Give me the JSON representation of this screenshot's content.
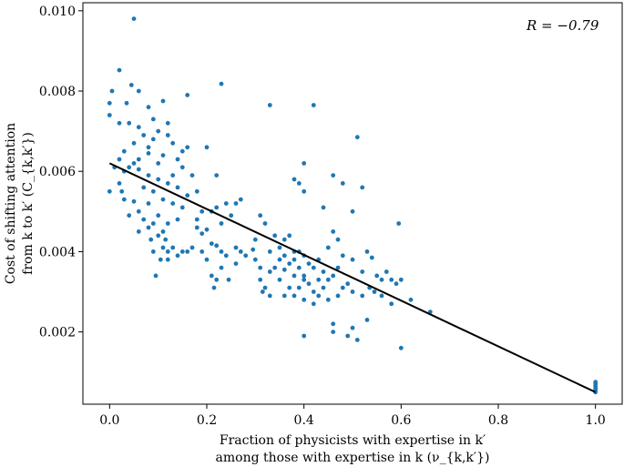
{
  "chart_data": {
    "type": "scatter",
    "xlabel_line1": "Fraction of physicists with expertise in k′",
    "xlabel_line2": "among those with expertise in k (ν_{k,k′})",
    "ylabel_line1": "Cost of shifting attention",
    "ylabel_line2": "from k to k′ (C_{k,k′})",
    "annotation": "R = −0.79",
    "xlim": [
      -0.055,
      1.055
    ],
    "ylim": [
      0.0002,
      0.0102
    ],
    "x_ticks": [
      0.0,
      0.2,
      0.4,
      0.6,
      0.8,
      1.0
    ],
    "x_tick_labels": [
      "0.0",
      "0.2",
      "0.4",
      "0.6",
      "0.8",
      "1.0"
    ],
    "y_ticks": [
      0.002,
      0.004,
      0.006,
      0.008,
      0.01
    ],
    "y_tick_labels": [
      "0.002",
      "0.004",
      "0.006",
      "0.008",
      "0.010"
    ],
    "grid": false,
    "colors": {
      "points": "#1f77b4",
      "fit_line": "#000000"
    },
    "fit_line": {
      "x": [
        0.0,
        1.0
      ],
      "y": [
        0.0062,
        0.0005
      ]
    },
    "points": [
      [
        0.05,
        0.0098
      ],
      [
        0.02,
        0.00852
      ],
      [
        0.045,
        0.00815
      ],
      [
        0.005,
        0.008
      ],
      [
        0.06,
        0.008
      ],
      [
        0.035,
        0.0077
      ],
      [
        0.0,
        0.0077
      ],
      [
        0.08,
        0.0076
      ],
      [
        0.11,
        0.00775
      ],
      [
        0.23,
        0.00818
      ],
      [
        0.16,
        0.0079
      ],
      [
        0.33,
        0.00765
      ],
      [
        0.42,
        0.00765
      ],
      [
        0.0,
        0.0074
      ],
      [
        0.02,
        0.0072
      ],
      [
        0.04,
        0.0072
      ],
      [
        0.06,
        0.0071
      ],
      [
        0.09,
        0.0073
      ],
      [
        0.12,
        0.0072
      ],
      [
        0.1,
        0.007
      ],
      [
        0.07,
        0.0069
      ],
      [
        0.05,
        0.0067
      ],
      [
        0.03,
        0.0065
      ],
      [
        0.09,
        0.0068
      ],
      [
        0.12,
        0.0069
      ],
      [
        0.13,
        0.0067
      ],
      [
        0.08,
        0.0066
      ],
      [
        0.06,
        0.0063
      ],
      [
        0.02,
        0.0063
      ],
      [
        0.11,
        0.0064
      ],
      [
        0.15,
        0.0065
      ],
      [
        0.14,
        0.0063
      ],
      [
        0.2,
        0.0066
      ],
      [
        0.16,
        0.0066
      ],
      [
        0.08,
        0.00645
      ],
      [
        0.1,
        0.0062
      ],
      [
        0.01,
        0.0061
      ],
      [
        0.03,
        0.006
      ],
      [
        0.04,
        0.0061
      ],
      [
        0.05,
        0.0062
      ],
      [
        0.06,
        0.00605
      ],
      [
        0.08,
        0.0059
      ],
      [
        0.1,
        0.0058
      ],
      [
        0.13,
        0.0059
      ],
      [
        0.15,
        0.0061
      ],
      [
        0.17,
        0.0059
      ],
      [
        0.22,
        0.0059
      ],
      [
        0.02,
        0.0057
      ],
      [
        0.07,
        0.0056
      ],
      [
        0.09,
        0.0055
      ],
      [
        0.12,
        0.0057
      ],
      [
        0.14,
        0.0056
      ],
      [
        0.16,
        0.0054
      ],
      [
        0.18,
        0.0055
      ],
      [
        0.11,
        0.0053
      ],
      [
        0.13,
        0.0052
      ],
      [
        0.08,
        0.0052
      ],
      [
        0.05,
        0.00525
      ],
      [
        0.0,
        0.0055
      ],
      [
        0.025,
        0.0055
      ],
      [
        0.03,
        0.0053
      ],
      [
        0.04,
        0.0049
      ],
      [
        0.06,
        0.005
      ],
      [
        0.07,
        0.0048
      ],
      [
        0.09,
        0.0047
      ],
      [
        0.1,
        0.0049
      ],
      [
        0.12,
        0.0047
      ],
      [
        0.14,
        0.0048
      ],
      [
        0.15,
        0.0051
      ],
      [
        0.11,
        0.0045
      ],
      [
        0.08,
        0.0046
      ],
      [
        0.06,
        0.0045
      ],
      [
        0.085,
        0.0043
      ],
      [
        0.1,
        0.0044
      ],
      [
        0.115,
        0.0043
      ],
      [
        0.18,
        0.0048
      ],
      [
        0.19,
        0.005
      ],
      [
        0.21,
        0.005
      ],
      [
        0.22,
        0.0051
      ],
      [
        0.24,
        0.0052
      ],
      [
        0.25,
        0.0049
      ],
      [
        0.26,
        0.0052
      ],
      [
        0.23,
        0.0047
      ],
      [
        0.27,
        0.0053
      ],
      [
        0.18,
        0.0046
      ],
      [
        0.19,
        0.00445
      ],
      [
        0.2,
        0.00455
      ],
      [
        0.21,
        0.0042
      ],
      [
        0.17,
        0.0041
      ],
      [
        0.16,
        0.004
      ],
      [
        0.15,
        0.004
      ],
      [
        0.13,
        0.0041
      ],
      [
        0.12,
        0.004
      ],
      [
        0.11,
        0.0041
      ],
      [
        0.09,
        0.004
      ],
      [
        0.095,
        0.0034
      ],
      [
        0.105,
        0.0038
      ],
      [
        0.14,
        0.0039
      ],
      [
        0.12,
        0.0038
      ],
      [
        0.19,
        0.004
      ],
      [
        0.2,
        0.0038
      ],
      [
        0.22,
        0.00415
      ],
      [
        0.23,
        0.004
      ],
      [
        0.24,
        0.0039
      ],
      [
        0.26,
        0.0041
      ],
      [
        0.27,
        0.004
      ],
      [
        0.28,
        0.0039
      ],
      [
        0.21,
        0.0034
      ],
      [
        0.22,
        0.0033
      ],
      [
        0.245,
        0.0033
      ],
      [
        0.215,
        0.0031
      ],
      [
        0.23,
        0.0036
      ],
      [
        0.26,
        0.0037
      ],
      [
        0.3,
        0.0043
      ],
      [
        0.31,
        0.0049
      ],
      [
        0.32,
        0.0047
      ],
      [
        0.34,
        0.0044
      ],
      [
        0.35,
        0.0041
      ],
      [
        0.36,
        0.0043
      ],
      [
        0.37,
        0.0044
      ],
      [
        0.33,
        0.004
      ],
      [
        0.35,
        0.0038
      ],
      [
        0.36,
        0.0039
      ],
      [
        0.34,
        0.0036
      ],
      [
        0.33,
        0.0035
      ],
      [
        0.31,
        0.0033
      ],
      [
        0.32,
        0.0031
      ],
      [
        0.315,
        0.003
      ],
      [
        0.33,
        0.0029
      ],
      [
        0.35,
        0.0033
      ],
      [
        0.36,
        0.00355
      ],
      [
        0.37,
        0.0037
      ],
      [
        0.38,
        0.0038
      ],
      [
        0.39,
        0.004
      ],
      [
        0.4,
        0.0039
      ],
      [
        0.41,
        0.0037
      ],
      [
        0.42,
        0.0036
      ],
      [
        0.43,
        0.0038
      ],
      [
        0.44,
        0.0035
      ],
      [
        0.38,
        0.0034
      ],
      [
        0.37,
        0.0031
      ],
      [
        0.36,
        0.0029
      ],
      [
        0.38,
        0.0029
      ],
      [
        0.39,
        0.0031
      ],
      [
        0.4,
        0.0033
      ],
      [
        0.41,
        0.0032
      ],
      [
        0.42,
        0.003
      ],
      [
        0.43,
        0.0029
      ],
      [
        0.44,
        0.0031
      ],
      [
        0.45,
        0.0033
      ],
      [
        0.46,
        0.0034
      ],
      [
        0.47,
        0.0036
      ],
      [
        0.48,
        0.0031
      ],
      [
        0.49,
        0.0032
      ],
      [
        0.5,
        0.003
      ],
      [
        0.45,
        0.0028
      ],
      [
        0.47,
        0.0029
      ],
      [
        0.4,
        0.0028
      ],
      [
        0.42,
        0.0027
      ],
      [
        0.38,
        0.004
      ],
      [
        0.39,
        0.0036
      ],
      [
        0.4,
        0.0034
      ],
      [
        0.43,
        0.0033
      ],
      [
        0.295,
        0.00405
      ],
      [
        0.3,
        0.0038
      ],
      [
        0.31,
        0.0036
      ],
      [
        0.38,
        0.0058
      ],
      [
        0.39,
        0.0057
      ],
      [
        0.4,
        0.0062
      ],
      [
        0.4,
        0.0055
      ],
      [
        0.44,
        0.0051
      ],
      [
        0.46,
        0.0059
      ],
      [
        0.48,
        0.0057
      ],
      [
        0.5,
        0.005
      ],
      [
        0.51,
        0.00685
      ],
      [
        0.52,
        0.0056
      ],
      [
        0.46,
        0.0045
      ],
      [
        0.45,
        0.0041
      ],
      [
        0.47,
        0.0043
      ],
      [
        0.48,
        0.0039
      ],
      [
        0.5,
        0.0038
      ],
      [
        0.52,
        0.0035
      ],
      [
        0.53,
        0.004
      ],
      [
        0.54,
        0.00385
      ],
      [
        0.55,
        0.0034
      ],
      [
        0.56,
        0.0033
      ],
      [
        0.57,
        0.0035
      ],
      [
        0.58,
        0.0033
      ],
      [
        0.59,
        0.0032
      ],
      [
        0.6,
        0.0033
      ],
      [
        0.535,
        0.0031
      ],
      [
        0.545,
        0.003
      ],
      [
        0.52,
        0.0029
      ],
      [
        0.56,
        0.0029
      ],
      [
        0.58,
        0.0027
      ],
      [
        0.62,
        0.0028
      ],
      [
        0.66,
        0.0025
      ],
      [
        0.595,
        0.0047
      ],
      [
        0.5,
        0.0021
      ],
      [
        0.46,
        0.002
      ],
      [
        0.46,
        0.0022
      ],
      [
        0.49,
        0.0019
      ],
      [
        0.51,
        0.0018
      ],
      [
        0.53,
        0.0023
      ],
      [
        0.6,
        0.0016
      ],
      [
        0.4,
        0.0019
      ],
      [
        1.0,
        0.00075
      ],
      [
        1.0,
        0.0007
      ],
      [
        1.0,
        0.00065
      ],
      [
        1.0,
        0.0006
      ],
      [
        1.0,
        0.00055
      ],
      [
        1.0,
        0.0005
      ]
    ]
  }
}
